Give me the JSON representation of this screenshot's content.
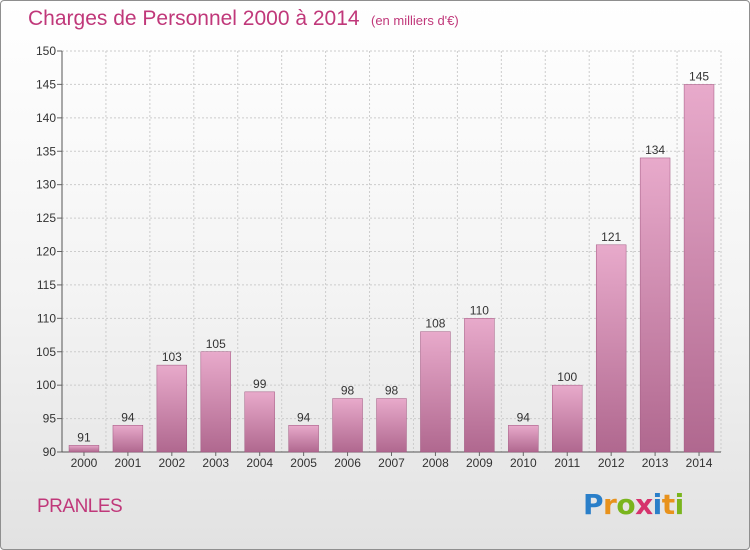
{
  "header": {
    "title": "Charges de Personnel 2000 à 2014",
    "subtitle": "(en milliers d'€)"
  },
  "footer": {
    "commune": "PRANLES",
    "logo_text": "Proxiti",
    "logo_letters": [
      {
        "ch": "P",
        "color": "#2a7fc9"
      },
      {
        "ch": "r",
        "color": "#e8921c"
      },
      {
        "ch": "o",
        "color": "#7ab51d"
      },
      {
        "ch": "x",
        "color": "#d6336c"
      },
      {
        "ch": "i",
        "color": "#2a7fc9"
      },
      {
        "ch": "t",
        "color": "#e8921c"
      },
      {
        "ch": "i",
        "color": "#7ab51d"
      }
    ]
  },
  "colors": {
    "accent": "#c0387a",
    "bar_top": "#e8aacb",
    "bar_bottom": "#b0688f",
    "grid": "#cccccc"
  },
  "chart_data": {
    "type": "bar",
    "title": "Charges de Personnel 2000 à 2014",
    "subtitle": "(en milliers d'€)",
    "xlabel": "",
    "ylabel": "",
    "categories": [
      "2000",
      "2001",
      "2002",
      "2003",
      "2004",
      "2005",
      "2006",
      "2007",
      "2008",
      "2009",
      "2010",
      "2011",
      "2012",
      "2013",
      "2014"
    ],
    "values": [
      91,
      94,
      103,
      105,
      99,
      94,
      98,
      98,
      108,
      110,
      94,
      100,
      121,
      134,
      145
    ],
    "ylim": [
      90,
      150
    ],
    "yticks": [
      90,
      95,
      100,
      105,
      110,
      115,
      120,
      125,
      130,
      135,
      140,
      145,
      150
    ],
    "grid": true,
    "data_labels": true
  }
}
